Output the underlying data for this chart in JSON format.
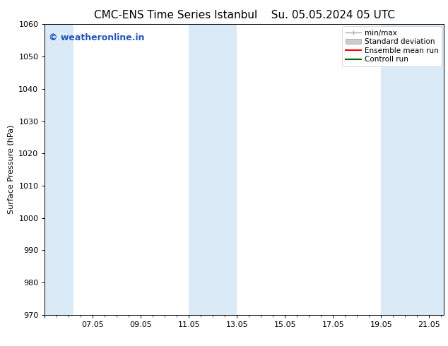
{
  "title_left": "CMC-ENS Time Series Istanbul",
  "title_right": "Su. 05.05.2024 05 UTC",
  "ylabel": "Surface Pressure (hPa)",
  "ylim": [
    970,
    1060
  ],
  "yticks": [
    970,
    980,
    990,
    1000,
    1010,
    1020,
    1030,
    1040,
    1050,
    1060
  ],
  "xlim": [
    5.0,
    21.6
  ],
  "xtick_positions": [
    5.0,
    7.0,
    9.0,
    11.0,
    13.0,
    15.0,
    17.0,
    19.0,
    21.0
  ],
  "xtick_labels": [
    "",
    "07.05",
    "09.05",
    "11.05",
    "13.05",
    "15.05",
    "17.05",
    "19.05",
    "21.05"
  ],
  "background_color": "#ffffff",
  "shaded_bands": [
    {
      "x_start": 5.0,
      "x_end": 6.2
    },
    {
      "x_start": 11.0,
      "x_end": 13.0
    },
    {
      "x_start": 19.0,
      "x_end": 21.6
    }
  ],
  "band_color": "#daeaf7",
  "watermark_text": "© weatheronline.in",
  "watermark_color": "#2255bb",
  "legend_items": [
    {
      "label": "min/max",
      "color": "#aaaaaa",
      "type": "errorbar"
    },
    {
      "label": "Standard deviation",
      "color": "#cccccc",
      "type": "bar"
    },
    {
      "label": "Ensemble mean run",
      "color": "#ff0000",
      "type": "line"
    },
    {
      "label": "Controll run",
      "color": "#006600",
      "type": "line"
    }
  ],
  "title_fontsize": 11,
  "axis_label_fontsize": 8,
  "tick_fontsize": 8,
  "legend_fontsize": 7.5,
  "watermark_fontsize": 9
}
